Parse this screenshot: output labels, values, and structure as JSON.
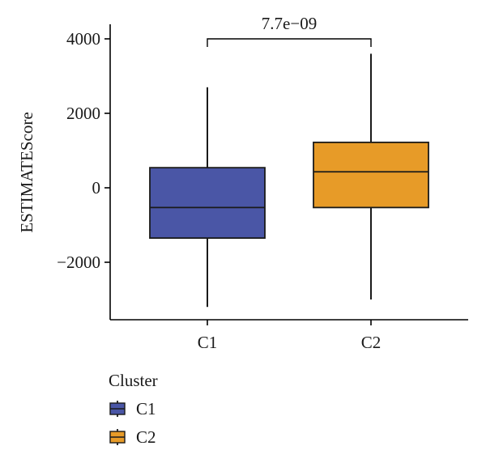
{
  "chart_data": {
    "type": "boxplot",
    "title": "",
    "xlabel": "",
    "ylabel": "ESTIMATEScore",
    "ylim": [
      -3500,
      4200
    ],
    "yticks": [
      4000,
      2000,
      0,
      -2000
    ],
    "ytick_labels": [
      "4000",
      "2000",
      "0",
      "−2000"
    ],
    "categories": [
      "C1",
      "C2"
    ],
    "boxes": [
      {
        "name": "C1",
        "min": -3200,
        "q1": -1350,
        "median": -530,
        "q3": 540,
        "max": 2700,
        "color": "#4a56a6"
      },
      {
        "name": "C2",
        "min": -3000,
        "q1": -530,
        "median": 430,
        "q3": 1220,
        "max": 3600,
        "color": "#e79b28"
      }
    ],
    "annotation": {
      "text": "7.7e−09",
      "between": [
        "C1",
        "C2"
      ],
      "y": 4000
    },
    "legend": {
      "title": "Cluster",
      "placement": "bottom-left",
      "items": [
        "C1",
        "C2"
      ]
    },
    "grid": false
  }
}
